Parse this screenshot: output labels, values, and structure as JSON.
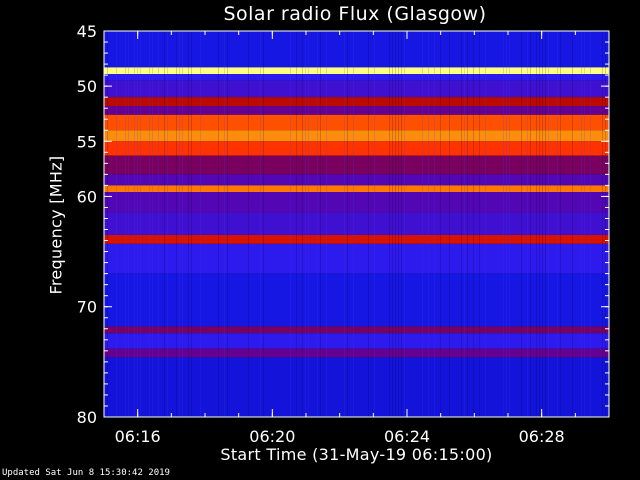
{
  "chart_data": {
    "type": "heatmap",
    "title": "Solar radio Flux (Glasgow)",
    "xlabel": "Start Time (31-May-19 06:15:00)",
    "ylabel": "Frequency [MHz]",
    "x_range_minutes": [
      "06:15:00",
      "06:30:00"
    ],
    "y_range_mhz": [
      45,
      80
    ],
    "x_ticks": [
      "06:16",
      "06:20",
      "06:24",
      "06:28"
    ],
    "y_ticks": [
      45,
      50,
      55,
      60,
      70,
      80
    ],
    "colormap": [
      "#0000a0",
      "#2020ff",
      "#6000a0",
      "#a00000",
      "#ff2000",
      "#ff8000",
      "#ffff80"
    ],
    "bands": [
      {
        "from": 45.0,
        "to": 48.3,
        "level": 0.12
      },
      {
        "from": 48.3,
        "to": 48.9,
        "level": 1.0
      },
      {
        "from": 48.9,
        "to": 49.5,
        "level": 0.2
      },
      {
        "from": 49.5,
        "to": 51.0,
        "level": 0.25
      },
      {
        "from": 51.0,
        "to": 51.8,
        "level": 0.55
      },
      {
        "from": 51.8,
        "to": 52.6,
        "level": 0.35
      },
      {
        "from": 52.6,
        "to": 54.0,
        "level": 0.75
      },
      {
        "from": 54.0,
        "to": 55.0,
        "level": 0.85
      },
      {
        "from": 55.0,
        "to": 56.3,
        "level": 0.7
      },
      {
        "from": 56.3,
        "to": 58.0,
        "level": 0.4
      },
      {
        "from": 58.0,
        "to": 59.0,
        "level": 0.3
      },
      {
        "from": 59.0,
        "to": 59.6,
        "level": 0.82
      },
      {
        "from": 59.6,
        "to": 61.5,
        "level": 0.3
      },
      {
        "from": 61.5,
        "to": 63.5,
        "level": 0.25
      },
      {
        "from": 63.5,
        "to": 64.3,
        "level": 0.6
      },
      {
        "from": 64.3,
        "to": 67.0,
        "level": 0.2
      },
      {
        "from": 67.0,
        "to": 71.8,
        "level": 0.12
      },
      {
        "from": 71.8,
        "to": 72.4,
        "level": 0.4
      },
      {
        "from": 72.4,
        "to": 73.8,
        "level": 0.2
      },
      {
        "from": 73.8,
        "to": 74.6,
        "level": 0.35
      },
      {
        "from": 74.6,
        "to": 80.0,
        "level": 0.1
      }
    ]
  },
  "footer": {
    "updated": "Updated Sat Jun  8 15:30:42 2019"
  }
}
